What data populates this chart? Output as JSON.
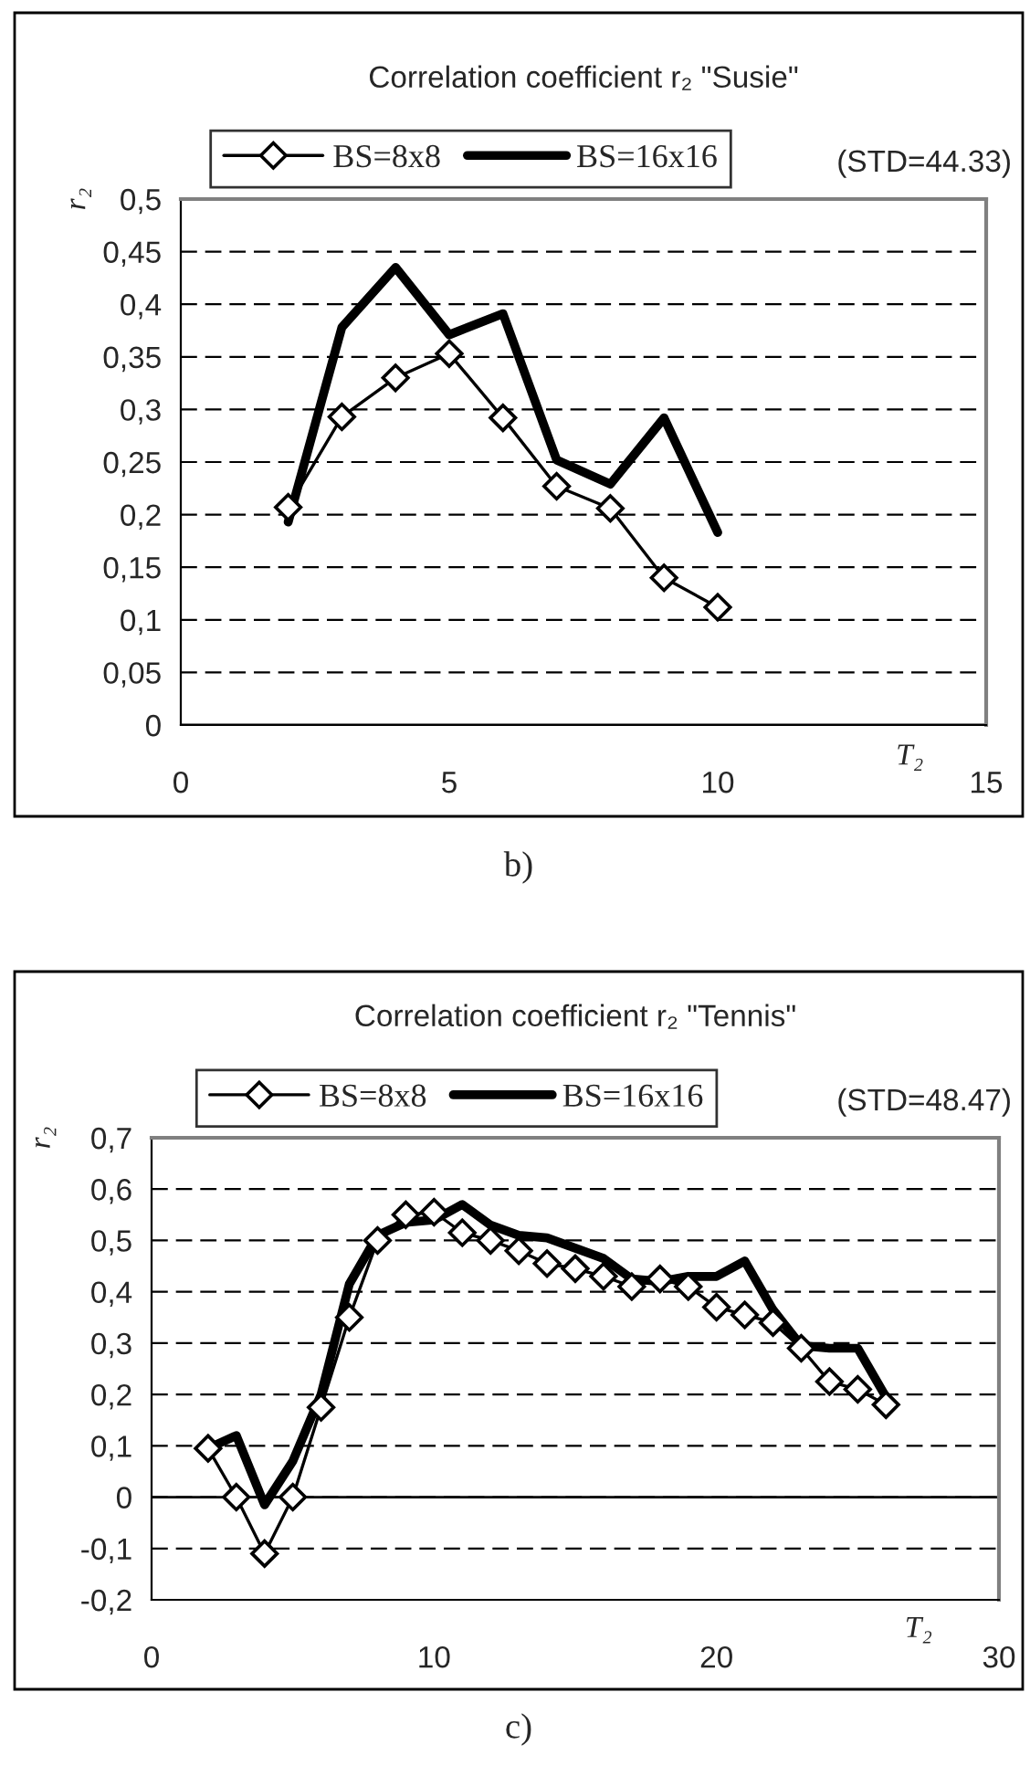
{
  "chart_data": [
    {
      "type": "line",
      "title": "Correlation coefficient r₂ \"Susie\"",
      "xlabel": "T₂",
      "ylabel": "r₂",
      "x": [
        2,
        3,
        4,
        5,
        6,
        7,
        8,
        9,
        10
      ],
      "series": [
        {
          "name": "BS=8x8",
          "color": "#000000",
          "marker": "diamond",
          "values": [
            0.207,
            0.293,
            0.33,
            0.353,
            0.292,
            0.227,
            0.206,
            0.14,
            0.112
          ]
        },
        {
          "name": "BS=16x16",
          "color": "#000000",
          "marker": "none",
          "values": [
            0.193,
            0.378,
            0.435,
            0.371,
            0.391,
            0.252,
            0.229,
            0.292,
            0.183
          ]
        }
      ],
      "xlim": [
        0,
        15
      ],
      "xticks": [
        0,
        5,
        10,
        15
      ],
      "ylim": [
        0,
        0.5
      ],
      "yticks": [
        0,
        {
          "value": 0.05,
          "label": "0,05"
        },
        {
          "value": 0.1,
          "label": "0,1"
        },
        {
          "value": 0.15,
          "label": "0,15"
        },
        {
          "value": 0.2,
          "label": "0,2"
        },
        {
          "value": 0.25,
          "label": "0,25"
        },
        {
          "value": 0.3,
          "label": "0,3"
        },
        {
          "value": 0.35,
          "label": "0,35"
        },
        {
          "value": 0.4,
          "label": "0,4"
        },
        {
          "value": 0.45,
          "label": "0,45"
        },
        {
          "value": 0.5,
          "label": "0,5"
        }
      ],
      "grid": "y",
      "legend": "top",
      "annotations": [
        "(STD=44.33)",
        "b)"
      ]
    },
    {
      "type": "line",
      "title": "Correlation coefficient r₂ \"Tennis\"",
      "xlabel": "T₂",
      "ylabel": "r₂",
      "x": [
        2,
        3,
        4,
        5,
        6,
        7,
        8,
        9,
        10,
        11,
        12,
        13,
        14,
        15,
        16,
        17,
        18,
        19,
        20,
        21,
        22,
        23,
        24,
        25,
        26
      ],
      "series": [
        {
          "name": "BS=8x8",
          "color": "#000000",
          "marker": "diamond",
          "values": [
            0.095,
            0.0,
            -0.11,
            0.0,
            0.175,
            0.35,
            0.5,
            0.55,
            0.555,
            0.515,
            0.5,
            0.48,
            0.455,
            0.445,
            0.43,
            0.41,
            0.425,
            0.41,
            0.37,
            0.355,
            0.34,
            0.29,
            0.225,
            0.21,
            0.18
          ]
        },
        {
          "name": "BS=16x16",
          "color": "#000000",
          "marker": "none",
          "values": [
            0.095,
            0.12,
            -0.015,
            0.07,
            0.2,
            0.415,
            0.51,
            0.535,
            0.54,
            0.57,
            0.53,
            0.51,
            0.505,
            0.485,
            0.465,
            0.425,
            0.42,
            0.43,
            0.43,
            0.46,
            0.365,
            0.295,
            0.29,
            0.29,
            0.195
          ]
        }
      ],
      "xlim": [
        0,
        30
      ],
      "xticks": [
        0,
        10,
        20,
        30
      ],
      "ylim": [
        -0.2,
        0.7
      ],
      "yticks": [
        {
          "value": -0.2,
          "label": "-0,2"
        },
        {
          "value": -0.1,
          "label": "-0,1"
        },
        0,
        {
          "value": 0.1,
          "label": "0,1"
        },
        {
          "value": 0.2,
          "label": "0,2"
        },
        {
          "value": 0.3,
          "label": "0,3"
        },
        {
          "value": 0.4,
          "label": "0,4"
        },
        {
          "value": 0.5,
          "label": "0,5"
        },
        {
          "value": 0.6,
          "label": "0,6"
        },
        {
          "value": 0.7,
          "label": "0,7"
        }
      ],
      "grid": "y",
      "legend": "top",
      "annotations": [
        "(STD=48.47)",
        "c)"
      ]
    }
  ]
}
